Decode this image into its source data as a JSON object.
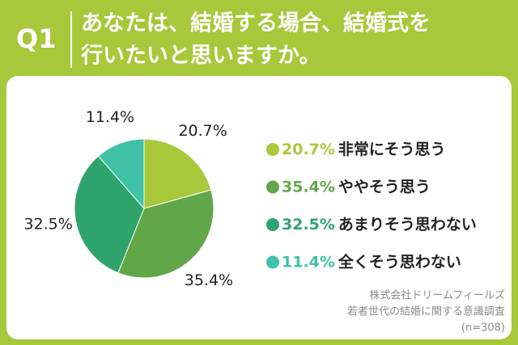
{
  "chart_data": {
    "type": "pie",
    "question": "Q1",
    "title": [
      "あなたは、結婚する場合、結婚式を",
      "行いたいと思いますか。"
    ],
    "categories": [
      "非常にそう思う",
      "ややそう思う",
      "あまりそう思わない",
      "全くそう思わない"
    ],
    "values": [
      20.7,
      35.4,
      32.5,
      11.4
    ],
    "value_labels": [
      "20.7%",
      "35.4%",
      "32.5%",
      "11.4%"
    ],
    "colors": [
      "#a9c83b",
      "#62a747",
      "#2ea46c",
      "#3fc2a6"
    ],
    "source": [
      "株式会社ドリームフィールズ",
      "若者世代の結婚に関する意識調査",
      "(n=308)"
    ]
  }
}
